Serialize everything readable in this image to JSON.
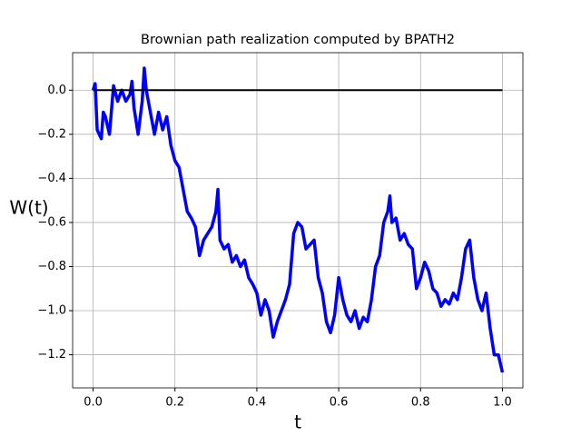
{
  "chart_data": {
    "type": "line",
    "title": "Brownian path realization computed by BPATH2",
    "xlabel": "t",
    "ylabel": "W(t)",
    "xlim": [
      -0.05,
      1.05
    ],
    "ylim": [
      -1.35,
      0.17
    ],
    "xticks": [
      {
        "value": 0,
        "label": "0.0"
      },
      {
        "value": 0.2,
        "label": "0.2"
      },
      {
        "value": 0.4,
        "label": "0.4"
      },
      {
        "value": 0.6,
        "label": "0.6"
      },
      {
        "value": 0.8,
        "label": "0.8"
      },
      {
        "value": 1,
        "label": "1.0"
      }
    ],
    "yticks": [
      {
        "value": 0,
        "label": "0.0"
      },
      {
        "value": -0.2,
        "label": "−0.2"
      },
      {
        "value": -0.4,
        "label": "−0.4"
      },
      {
        "value": -0.6,
        "label": "−0.6"
      },
      {
        "value": -0.8,
        "label": "−0.8"
      },
      {
        "value": -1,
        "label": "−1.0"
      },
      {
        "value": -1.2,
        "label": "−1.2"
      }
    ],
    "grid": true,
    "series": [
      {
        "color": "#0000ff",
        "width": 3.5,
        "x": [
          0,
          0.005,
          0.01,
          0.02,
          0.025,
          0.03,
          0.04,
          0.05,
          0.06,
          0.07,
          0.08,
          0.09,
          0.095,
          0.1,
          0.11,
          0.12,
          0.125,
          0.13,
          0.14,
          0.15,
          0.16,
          0.17,
          0.18,
          0.19,
          0.2,
          0.21,
          0.22,
          0.23,
          0.24,
          0.25,
          0.26,
          0.27,
          0.28,
          0.29,
          0.3,
          0.305,
          0.31,
          0.32,
          0.33,
          0.34,
          0.35,
          0.36,
          0.37,
          0.38,
          0.39,
          0.4,
          0.41,
          0.42,
          0.43,
          0.44,
          0.45,
          0.46,
          0.47,
          0.48,
          0.49,
          0.5,
          0.51,
          0.52,
          0.53,
          0.54,
          0.55,
          0.56,
          0.57,
          0.58,
          0.59,
          0.6,
          0.61,
          0.62,
          0.63,
          0.64,
          0.65,
          0.66,
          0.67,
          0.68,
          0.69,
          0.7,
          0.71,
          0.72,
          0.725,
          0.73,
          0.74,
          0.75,
          0.76,
          0.77,
          0.78,
          0.79,
          0.8,
          0.81,
          0.82,
          0.83,
          0.84,
          0.85,
          0.86,
          0.87,
          0.88,
          0.89,
          0.9,
          0.91,
          0.92,
          0.93,
          0.94,
          0.95,
          0.96,
          0.97,
          0.98,
          0.99,
          1
        ],
        "values": [
          0,
          0.03,
          -0.18,
          -0.22,
          -0.1,
          -0.12,
          -0.2,
          0.02,
          -0.05,
          0,
          -0.05,
          -0.02,
          0.04,
          -0.08,
          -0.2,
          -0.05,
          0.1,
          0,
          -0.1,
          -0.2,
          -0.1,
          -0.18,
          -0.12,
          -0.25,
          -0.32,
          -0.35,
          -0.45,
          -0.55,
          -0.58,
          -0.62,
          -0.75,
          -0.68,
          -0.65,
          -0.62,
          -0.55,
          -0.45,
          -0.68,
          -0.72,
          -0.7,
          -0.78,
          -0.75,
          -0.8,
          -0.77,
          -0.85,
          -0.88,
          -0.92,
          -1.02,
          -0.95,
          -1,
          -1.12,
          -1.05,
          -1,
          -0.95,
          -0.88,
          -0.65,
          -0.6,
          -0.62,
          -0.72,
          -0.7,
          -0.68,
          -0.85,
          -0.92,
          -1.05,
          -1.1,
          -1.02,
          -0.85,
          -0.95,
          -1.02,
          -1.05,
          -1,
          -1.08,
          -1.03,
          -1.05,
          -0.95,
          -0.8,
          -0.75,
          -0.6,
          -0.55,
          -0.48,
          -0.6,
          -0.58,
          -0.68,
          -0.65,
          -0.7,
          -0.72,
          -0.9,
          -0.85,
          -0.78,
          -0.82,
          -0.9,
          -0.92,
          -0.98,
          -0.95,
          -0.97,
          -0.92,
          -0.95,
          -0.85,
          -0.72,
          -0.68,
          -0.85,
          -0.95,
          -1,
          -0.92,
          -1.08,
          -1.2,
          -1.2,
          -1.28
        ]
      },
      {
        "color": "#000000",
        "width": 2,
        "x": [
          0,
          1
        ],
        "values": [
          0,
          0
        ]
      }
    ]
  }
}
